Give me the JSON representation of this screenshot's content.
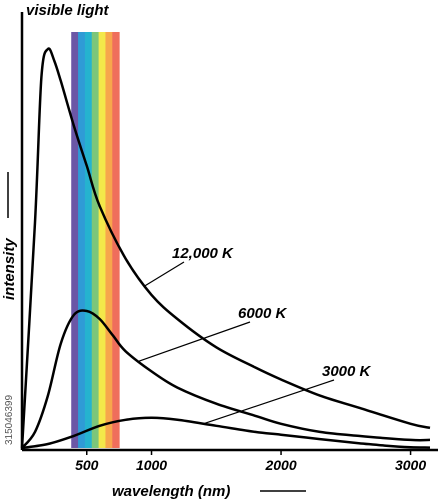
{
  "chart_data": {
    "type": "line",
    "title": "visible light",
    "xlabel": "wavelength (nm)",
    "ylabel": "intensity",
    "xlim": [
      0,
      3150
    ],
    "ylim": [
      0,
      1.0
    ],
    "x_ticks": [
      500,
      1000,
      2000,
      3000
    ],
    "x_tick_labels": [
      "500",
      "1000",
      "2000",
      "3000"
    ],
    "visible_band": [
      380,
      750
    ],
    "spectrum_colors": [
      "#6b57a6",
      "#2f9bd6",
      "#25b3cf",
      "#7cc67a",
      "#f3e84a",
      "#f7a64c",
      "#ef6e5c"
    ],
    "grid": false,
    "legend": "none",
    "series": [
      {
        "name": "12,000 K",
        "x": [
          0,
          100,
          150,
          200,
          250,
          300,
          400,
          500,
          600,
          800,
          1000,
          1200,
          1500,
          1800,
          2000,
          2300,
          2600,
          3000,
          3150
        ],
        "y": [
          0.0,
          0.56,
          0.92,
          0.99,
          0.96,
          0.91,
          0.8,
          0.7,
          0.6,
          0.47,
          0.38,
          0.32,
          0.25,
          0.2,
          0.17,
          0.13,
          0.1,
          0.06,
          0.05
        ]
      },
      {
        "name": "6000 K",
        "x": [
          0,
          100,
          200,
          300,
          400,
          500,
          600,
          700,
          800,
          1000,
          1200,
          1500,
          1800,
          2000,
          2300,
          2600,
          3000,
          3150
        ],
        "y": [
          0.0,
          0.04,
          0.13,
          0.26,
          0.33,
          0.34,
          0.32,
          0.28,
          0.24,
          0.19,
          0.15,
          0.11,
          0.08,
          0.06,
          0.04,
          0.03,
          0.02,
          0.02
        ]
      },
      {
        "name": "3000 K",
        "x": [
          0,
          200,
          400,
          600,
          800,
          1000,
          1200,
          1500,
          1800,
          2000,
          2300,
          2600,
          2800,
          3000,
          3150
        ],
        "y": [
          0.0,
          0.01,
          0.03,
          0.055,
          0.07,
          0.075,
          0.07,
          0.055,
          0.04,
          0.033,
          0.022,
          0.012,
          0.006,
          0.002,
          0.001
        ]
      }
    ],
    "annotations": [
      {
        "text": "12,000 K",
        "series": "12,000 K",
        "at_x": 950
      },
      {
        "text": "6000 K",
        "series": "6000 K",
        "at_x": 900
      },
      {
        "text": "3000 K",
        "series": "3000 K",
        "at_x": 1400
      }
    ]
  },
  "watermark": "315046399"
}
